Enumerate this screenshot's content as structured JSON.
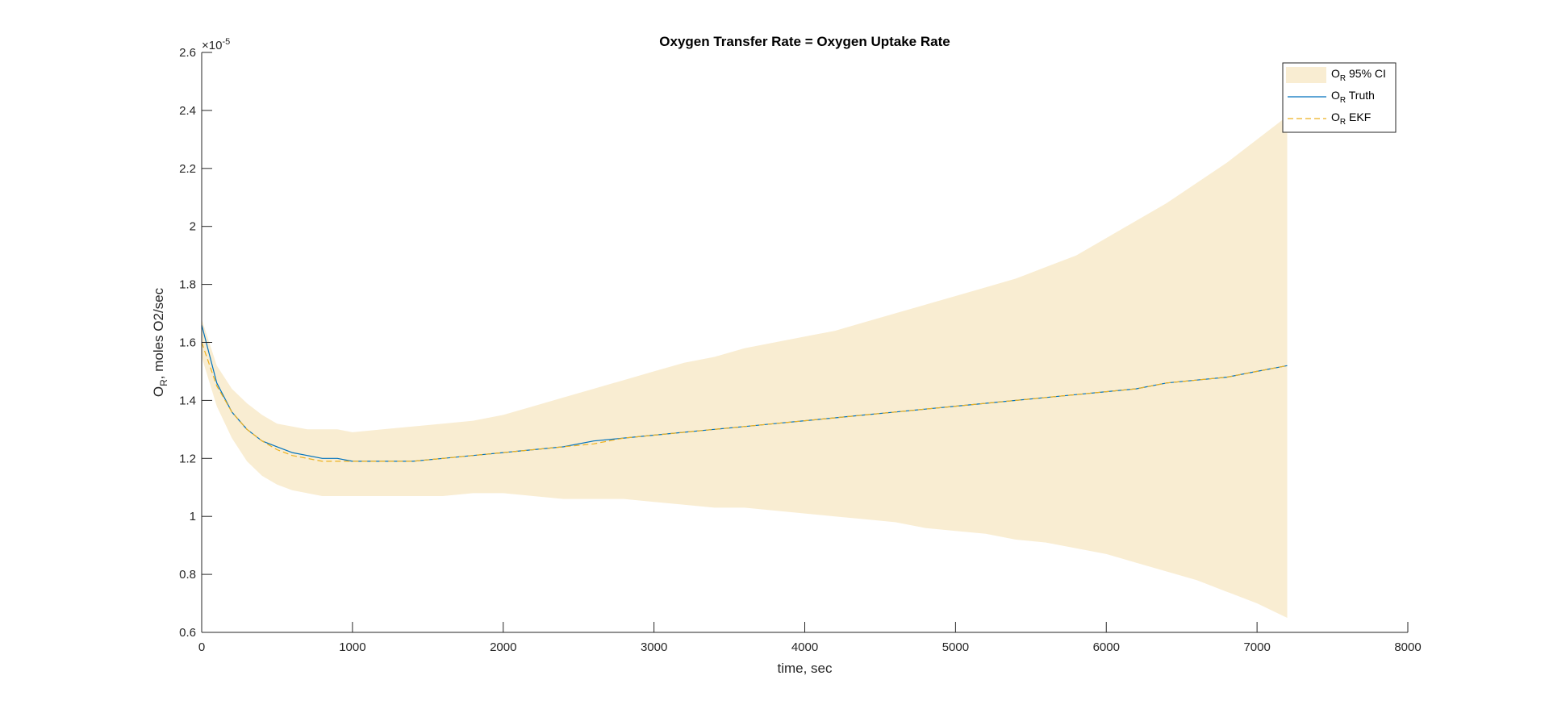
{
  "chart_data": {
    "type": "line",
    "title": "Oxygen Transfer Rate = Oxygen Uptake Rate",
    "xlabel": "time, sec",
    "ylabel": {
      "base": "O",
      "sub": "R",
      "rest": ", moles O2/sec"
    },
    "y_exponent": {
      "base": "×10",
      "exp": "-5"
    },
    "xlim": [
      0,
      8000
    ],
    "ylim": [
      0.6,
      2.6
    ],
    "x_ticks": [
      0,
      1000,
      2000,
      3000,
      4000,
      5000,
      6000,
      7000,
      8000
    ],
    "y_ticks": [
      0.6,
      0.8,
      1,
      1.2,
      1.4,
      1.6,
      1.8,
      2,
      2.2,
      2.4,
      2.6
    ],
    "grid": false,
    "legend_position": "top-right",
    "colors": {
      "ci_fill": "#F9EDD2",
      "truth": "#0072BD",
      "ekf": "#EDB120"
    },
    "series": [
      {
        "name": "O_R 95% CI",
        "legend": {
          "base": "O",
          "sub": "R",
          "rest": " 95% CI"
        },
        "kind": "band",
        "x": [
          0,
          100,
          200,
          300,
          400,
          500,
          600,
          700,
          800,
          900,
          1000,
          1200,
          1400,
          1600,
          1800,
          2000,
          2200,
          2400,
          2600,
          2800,
          3000,
          3200,
          3400,
          3600,
          3800,
          4000,
          4200,
          4400,
          4600,
          4800,
          5000,
          5200,
          5400,
          5600,
          5800,
          6000,
          6200,
          6400,
          6600,
          6800,
          7000,
          7200
        ],
        "upper": [
          1.68,
          1.52,
          1.44,
          1.39,
          1.35,
          1.32,
          1.31,
          1.3,
          1.3,
          1.3,
          1.29,
          1.3,
          1.31,
          1.32,
          1.33,
          1.35,
          1.38,
          1.41,
          1.44,
          1.47,
          1.5,
          1.53,
          1.55,
          1.58,
          1.6,
          1.62,
          1.64,
          1.67,
          1.7,
          1.73,
          1.76,
          1.79,
          1.82,
          1.86,
          1.9,
          1.96,
          2.02,
          2.08,
          2.15,
          2.22,
          2.3,
          2.38
        ],
        "lower": [
          1.55,
          1.38,
          1.27,
          1.19,
          1.14,
          1.11,
          1.09,
          1.08,
          1.07,
          1.07,
          1.07,
          1.07,
          1.07,
          1.07,
          1.08,
          1.08,
          1.07,
          1.06,
          1.06,
          1.06,
          1.05,
          1.04,
          1.03,
          1.03,
          1.02,
          1.01,
          1.0,
          0.99,
          0.98,
          0.96,
          0.95,
          0.94,
          0.92,
          0.91,
          0.89,
          0.87,
          0.84,
          0.81,
          0.78,
          0.74,
          0.7,
          0.65
        ]
      },
      {
        "name": "O_R Truth",
        "legend": {
          "base": "O",
          "sub": "R",
          "rest": " Truth"
        },
        "kind": "line",
        "x": [
          0,
          100,
          200,
          300,
          400,
          500,
          600,
          700,
          800,
          900,
          1000,
          1200,
          1400,
          1600,
          1800,
          2000,
          2200,
          2400,
          2600,
          2800,
          3000,
          3200,
          3400,
          3600,
          3800,
          4000,
          4200,
          4400,
          4600,
          4800,
          5000,
          5200,
          5400,
          5600,
          5800,
          6000,
          6200,
          6400,
          6600,
          6800,
          7000,
          7200
        ],
        "values": [
          1.66,
          1.46,
          1.36,
          1.3,
          1.26,
          1.24,
          1.22,
          1.21,
          1.2,
          1.2,
          1.19,
          1.19,
          1.19,
          1.2,
          1.21,
          1.22,
          1.23,
          1.24,
          1.26,
          1.27,
          1.28,
          1.29,
          1.3,
          1.31,
          1.32,
          1.33,
          1.34,
          1.35,
          1.36,
          1.37,
          1.38,
          1.39,
          1.4,
          1.41,
          1.42,
          1.43,
          1.44,
          1.46,
          1.47,
          1.48,
          1.5,
          1.52
        ]
      },
      {
        "name": "O_R EKF",
        "legend": {
          "base": "O",
          "sub": "R",
          "rest": " EKF"
        },
        "kind": "dashed-line",
        "x": [
          0,
          100,
          200,
          300,
          400,
          500,
          600,
          700,
          800,
          900,
          1000,
          1200,
          1400,
          1600,
          1800,
          2000,
          2200,
          2400,
          2600,
          2800,
          3000,
          3200,
          3400,
          3600,
          3800,
          4000,
          4200,
          4400,
          4600,
          4800,
          5000,
          5200,
          5400,
          5600,
          5800,
          6000,
          6200,
          6400,
          6600,
          6800,
          7000,
          7200
        ],
        "values": [
          1.6,
          1.45,
          1.36,
          1.3,
          1.26,
          1.23,
          1.21,
          1.2,
          1.19,
          1.19,
          1.19,
          1.19,
          1.19,
          1.2,
          1.21,
          1.22,
          1.23,
          1.24,
          1.25,
          1.27,
          1.28,
          1.29,
          1.3,
          1.31,
          1.32,
          1.33,
          1.34,
          1.35,
          1.36,
          1.37,
          1.38,
          1.39,
          1.4,
          1.41,
          1.42,
          1.43,
          1.44,
          1.46,
          1.47,
          1.48,
          1.5,
          1.52
        ]
      }
    ]
  }
}
